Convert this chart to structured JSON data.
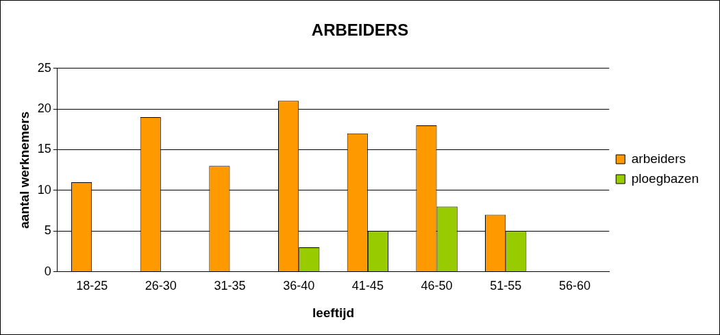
{
  "chart_data": {
    "type": "bar",
    "title": "ARBEIDERS",
    "xlabel": "leeftijd",
    "ylabel": "aantal werknemers",
    "categories": [
      "18-25",
      "26-30",
      "31-35",
      "36-40",
      "41-45",
      "46-50",
      "51-55",
      "56-60"
    ],
    "series": [
      {
        "name": "arbeiders",
        "color": "#ff9900",
        "values": [
          11,
          19,
          13,
          21,
          17,
          18,
          7,
          0
        ]
      },
      {
        "name": "ploegbazen",
        "color": "#99cc00",
        "values": [
          0,
          0,
          0,
          3,
          5,
          8,
          5,
          0
        ]
      }
    ],
    "ylim": [
      0,
      25
    ],
    "yticks": [
      0,
      5,
      10,
      15,
      20,
      25
    ],
    "grid": "y",
    "legend": "right"
  }
}
